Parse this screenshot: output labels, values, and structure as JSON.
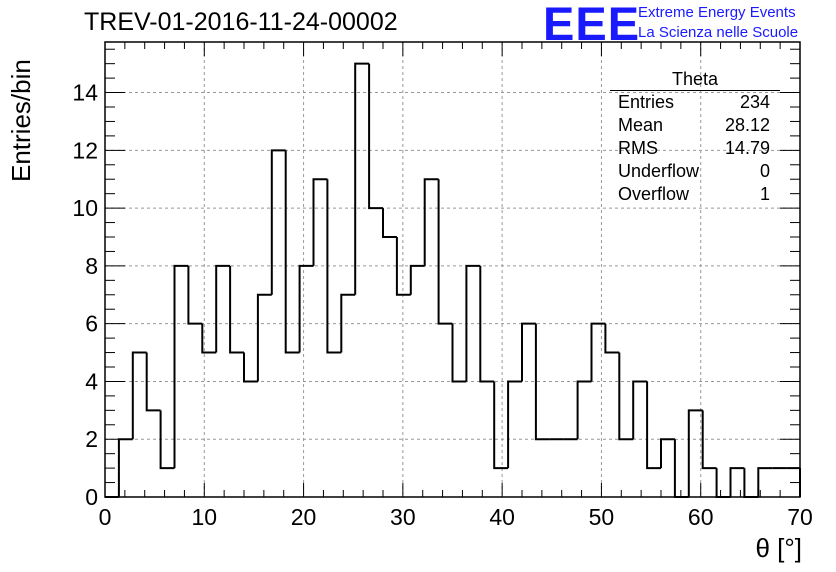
{
  "title": "TREV-01-2016-11-24-00002",
  "logo": {
    "mark": "EEE",
    "line1": "Extreme Energy Events",
    "line2": "La Scienza nelle Scuole",
    "color": "#1a1aff"
  },
  "stats": {
    "title": "Theta",
    "rows": [
      {
        "label": "Entries",
        "value": "234"
      },
      {
        "label": "Mean",
        "value": "28.12"
      },
      {
        "label": "RMS",
        "value": "14.79"
      },
      {
        "label": "Underflow",
        "value": "0"
      },
      {
        "label": "Overflow",
        "value": "1"
      }
    ]
  },
  "chart_data": {
    "type": "bar",
    "style": "step-histogram",
    "title": "TREV-01-2016-11-24-00002",
    "xlabel": "θ [°]",
    "ylabel": "Entries/bin",
    "xlim": [
      0,
      70
    ],
    "ylim": [
      0,
      15.75
    ],
    "bin_width": 1.4,
    "x_ticks": [
      0,
      10,
      20,
      30,
      40,
      50,
      60,
      70
    ],
    "y_ticks": [
      0,
      2,
      4,
      6,
      8,
      10,
      12,
      14
    ],
    "grid": true,
    "legend": "top-right statistics box",
    "series": [
      {
        "bin_edges_start": 0,
        "values": [
          0,
          2,
          5,
          3,
          1,
          8,
          6,
          5,
          8,
          5,
          4,
          7,
          12,
          5,
          8,
          11,
          5,
          7,
          15,
          10,
          9,
          7,
          8,
          11,
          6,
          4,
          8,
          4,
          1,
          4,
          6,
          2,
          2,
          2,
          4,
          6,
          5,
          2,
          4,
          1,
          2,
          0,
          3,
          1,
          0,
          1,
          0,
          1,
          1,
          1
        ]
      }
    ]
  }
}
